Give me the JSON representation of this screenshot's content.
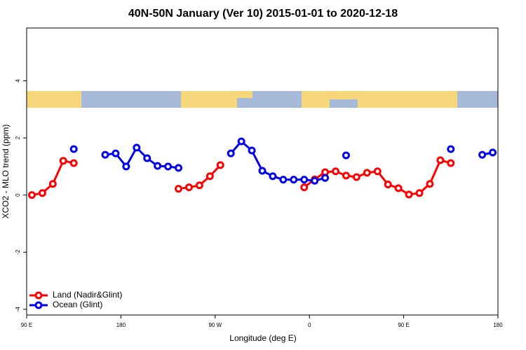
{
  "chart_data": {
    "type": "line",
    "title": "40N-50N January (Ver 10)   2015-01-01 to 2020-12-18",
    "x_label": "Longitude (deg E)",
    "y_label": "XCO2 - MLO trend (ppm)",
    "x": [
      95,
      105,
      115,
      125,
      135,
      145,
      155,
      165,
      175,
      185,
      195,
      205,
      215,
      225,
      235,
      245,
      255,
      265,
      275,
      285,
      295,
      305,
      315,
      325,
      335,
      345,
      355,
      365,
      375,
      385,
      395,
      405,
      415,
      425,
      435,
      445,
      455,
      465,
      475,
      485,
      495,
      505,
      515,
      525,
      535
    ],
    "series": [
      {
        "name": "Land (Nadir&Glint)",
        "color": "#ff0000",
        "values": [
          0.0,
          0.07,
          0.39,
          1.2,
          1.12,
          null,
          null,
          null,
          null,
          null,
          null,
          null,
          null,
          null,
          0.22,
          0.27,
          0.34,
          0.66,
          1.05,
          null,
          null,
          null,
          null,
          null,
          null,
          null,
          0.27,
          0.55,
          0.8,
          0.83,
          0.68,
          0.63,
          0.78,
          0.83,
          0.37,
          0.24,
          0.02,
          0.07,
          0.39,
          1.22,
          1.12,
          null,
          null,
          null,
          null
        ]
      },
      {
        "name": "Ocean (Glint)",
        "color": "#0000ee",
        "values": [
          null,
          null,
          null,
          null,
          1.61,
          null,
          null,
          1.41,
          1.46,
          1.0,
          1.66,
          1.29,
          1.02,
          1.0,
          0.95,
          null,
          null,
          null,
          null,
          1.46,
          1.88,
          1.56,
          0.85,
          0.66,
          0.54,
          0.54,
          0.54,
          0.5,
          0.6,
          null,
          1.39,
          null,
          null,
          null,
          null,
          null,
          null,
          null,
          null,
          null,
          1.61,
          null,
          null,
          1.41,
          1.49
        ]
      }
    ],
    "xlim": [
      90,
      540
    ],
    "xticks": [
      {
        "value": 90,
        "label": "90 E"
      },
      180,
      {
        "value": 270,
        "label": "90 W"
      },
      {
        "value": 360,
        "label": "0"
      },
      {
        "value": 450,
        "label": "90 E"
      },
      {
        "value": 540,
        "label": "180"
      }
    ],
    "ylim": [
      -4.2,
      5.85
    ],
    "yticks": [
      -4,
      -2,
      0,
      2,
      4
    ],
    "legend": "bottom-left"
  }
}
